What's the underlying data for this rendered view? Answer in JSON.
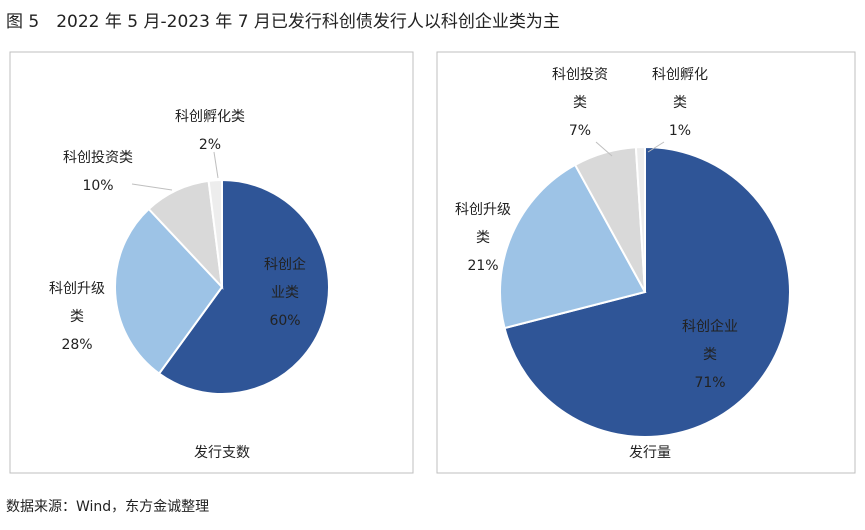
{
  "title": "图 5　2022 年 5 月-2023 年 7 月已发行科创债发行人以科创企业类为主",
  "source": "数据来源：Wind，东方金诚整理",
  "chart_data": [
    {
      "type": "pie",
      "title": "发行支数",
      "categories": [
        "科创企业类",
        "科创升级类",
        "科创投资类",
        "科创孵化类"
      ],
      "values": [
        60,
        28,
        10,
        2
      ],
      "value_labels": [
        "60%",
        "28%",
        "10%",
        "2%"
      ],
      "colors": [
        "#2f5597",
        "#9dc3e6",
        "#d9d9d9",
        "#ededed"
      ]
    },
    {
      "type": "pie",
      "title": "发行量",
      "categories": [
        "科创企业类",
        "科创升级类",
        "科创投资类",
        "科创孵化类"
      ],
      "values": [
        71,
        21,
        7,
        1
      ],
      "value_labels": [
        "71%",
        "21%",
        "7%",
        "1%"
      ],
      "colors": [
        "#2f5597",
        "#9dc3e6",
        "#d9d9d9",
        "#ededed"
      ]
    }
  ]
}
